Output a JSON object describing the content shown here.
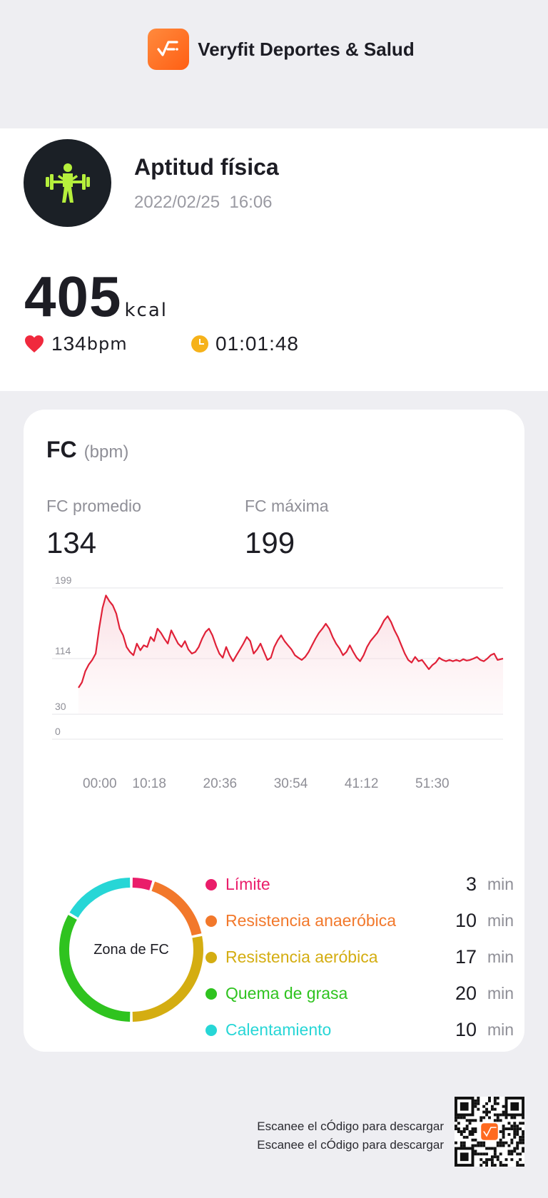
{
  "app": {
    "name": "Veryfit Deportes & Salud",
    "logo_icon": "veryfit-logo-icon",
    "accent": "#ff6a1f"
  },
  "activity": {
    "title": "Aptitud física",
    "date": "2022/02/25",
    "time": "16:06",
    "icon": "weightlifting-icon",
    "icon_color": "#b6f03c",
    "calories": "405",
    "calories_unit": "kcal",
    "heart_rate": "134",
    "heart_rate_unit": "bpm",
    "heart_color": "#f0293d",
    "duration": "01:01:48",
    "clock_color": "#f6b21a"
  },
  "hr_card": {
    "title": "FC",
    "unit": "(bpm)",
    "avg_label": "FC promedio",
    "avg_value": "134",
    "max_label": "FC máxima",
    "max_value": "199"
  },
  "chart_data": {
    "type": "line",
    "title": "",
    "xlabel": "",
    "ylabel": "",
    "line_color": "#e02138",
    "y_ticks": [
      199,
      114,
      30,
      0
    ],
    "x_ticks": [
      "00:00",
      "10:18",
      "20:36",
      "30:54",
      "41:12",
      "51:30"
    ],
    "ylim": [
      0,
      199
    ],
    "xlim": [
      0,
      61.8
    ],
    "series": [
      {
        "values": [
          [
            0.0,
            70
          ],
          [
            0.5,
            78
          ],
          [
            1.0,
            95
          ],
          [
            1.5,
            105
          ],
          [
            2.0,
            112
          ],
          [
            2.5,
            120
          ],
          [
            3.0,
            150
          ],
          [
            3.5,
            175
          ],
          [
            4.0,
            190
          ],
          [
            4.5,
            183
          ],
          [
            5.0,
            178
          ],
          [
            5.5,
            168
          ],
          [
            6.0,
            150
          ],
          [
            6.5,
            142
          ],
          [
            7.0,
            128
          ],
          [
            7.5,
            122
          ],
          [
            8.0,
            118
          ],
          [
            8.5,
            132
          ],
          [
            9.0,
            124
          ],
          [
            9.5,
            130
          ],
          [
            10.0,
            128
          ],
          [
            10.5,
            140
          ],
          [
            11.0,
            135
          ],
          [
            11.5,
            150
          ],
          [
            12.0,
            145
          ],
          [
            12.5,
            138
          ],
          [
            13.0,
            132
          ],
          [
            13.5,
            148
          ],
          [
            14.0,
            140
          ],
          [
            14.5,
            132
          ],
          [
            15.0,
            128
          ],
          [
            15.5,
            135
          ],
          [
            16.0,
            125
          ],
          [
            16.5,
            120
          ],
          [
            17.0,
            122
          ],
          [
            17.5,
            128
          ],
          [
            18.0,
            138
          ],
          [
            18.5,
            146
          ],
          [
            19.0,
            150
          ],
          [
            19.5,
            142
          ],
          [
            20.0,
            130
          ],
          [
            20.5,
            120
          ],
          [
            21.0,
            115
          ],
          [
            21.5,
            128
          ],
          [
            22.0,
            118
          ],
          [
            22.5,
            110
          ],
          [
            23.0,
            118
          ],
          [
            23.5,
            125
          ],
          [
            24.0,
            132
          ],
          [
            24.5,
            140
          ],
          [
            25.0,
            135
          ],
          [
            25.5,
            120
          ],
          [
            26.0,
            125
          ],
          [
            26.5,
            132
          ],
          [
            27.0,
            122
          ],
          [
            27.5,
            112
          ],
          [
            28.0,
            115
          ],
          [
            28.5,
            128
          ],
          [
            29.0,
            136
          ],
          [
            29.5,
            142
          ],
          [
            30.0,
            135
          ],
          [
            30.5,
            130
          ],
          [
            31.0,
            125
          ],
          [
            31.5,
            118
          ],
          [
            32.0,
            115
          ],
          [
            32.5,
            112
          ],
          [
            33.0,
            116
          ],
          [
            33.5,
            122
          ],
          [
            34.0,
            130
          ],
          [
            34.5,
            138
          ],
          [
            35.0,
            145
          ],
          [
            35.5,
            150
          ],
          [
            36.0,
            156
          ],
          [
            36.5,
            150
          ],
          [
            37.0,
            140
          ],
          [
            37.5,
            132
          ],
          [
            38.0,
            126
          ],
          [
            38.5,
            118
          ],
          [
            39.0,
            122
          ],
          [
            39.5,
            130
          ],
          [
            40.0,
            122
          ],
          [
            40.5,
            115
          ],
          [
            41.0,
            110
          ],
          [
            41.5,
            118
          ],
          [
            42.0,
            128
          ],
          [
            42.5,
            135
          ],
          [
            43.0,
            140
          ],
          [
            43.5,
            145
          ],
          [
            44.0,
            152
          ],
          [
            44.5,
            160
          ],
          [
            45.0,
            165
          ],
          [
            45.5,
            158
          ],
          [
            46.0,
            148
          ],
          [
            46.5,
            140
          ],
          [
            47.0,
            130
          ],
          [
            47.5,
            120
          ],
          [
            48.0,
            112
          ],
          [
            48.5,
            108
          ],
          [
            49.0,
            116
          ],
          [
            49.5,
            110
          ],
          [
            50.0,
            112
          ],
          [
            50.5,
            105
          ],
          [
            51.0,
            98
          ],
          [
            51.5,
            104
          ],
          [
            52.0,
            108
          ],
          [
            52.5,
            115
          ],
          [
            53.0,
            112
          ],
          [
            53.5,
            110
          ],
          [
            54.0,
            112
          ],
          [
            54.5,
            110
          ],
          [
            55.0,
            112
          ],
          [
            55.5,
            110
          ],
          [
            56.0,
            113
          ],
          [
            56.5,
            111
          ],
          [
            57.0,
            112
          ],
          [
            57.5,
            114
          ],
          [
            58.0,
            116
          ],
          [
            58.5,
            112
          ],
          [
            59.0,
            110
          ],
          [
            59.5,
            114
          ],
          [
            60.0,
            118
          ],
          [
            60.5,
            120
          ],
          [
            61.0,
            112
          ],
          [
            61.8,
            114
          ]
        ]
      }
    ]
  },
  "zones": {
    "label": "Zona de FC",
    "unit": "min",
    "items": [
      {
        "name": "Límite",
        "value": "3",
        "minutes": 3,
        "color": "#ea1d6a"
      },
      {
        "name": "Resistencia anaeróbica",
        "value": "10",
        "minutes": 10,
        "color": "#f2782b"
      },
      {
        "name": "Resistencia aeróbica",
        "value": "17",
        "minutes": 17,
        "color": "#d4ad11"
      },
      {
        "name": "Quema de grasa",
        "value": "20",
        "minutes": 20,
        "color": "#2fc31f"
      },
      {
        "name": "Calentamiento",
        "value": "10",
        "minutes": 10,
        "color": "#27d6d6"
      }
    ]
  },
  "footer": {
    "line1": "Escanee el cÓdigo para descargar",
    "line2": "Escanee el cÓdigo para descargar",
    "qr_icon": "qr-code-icon"
  }
}
